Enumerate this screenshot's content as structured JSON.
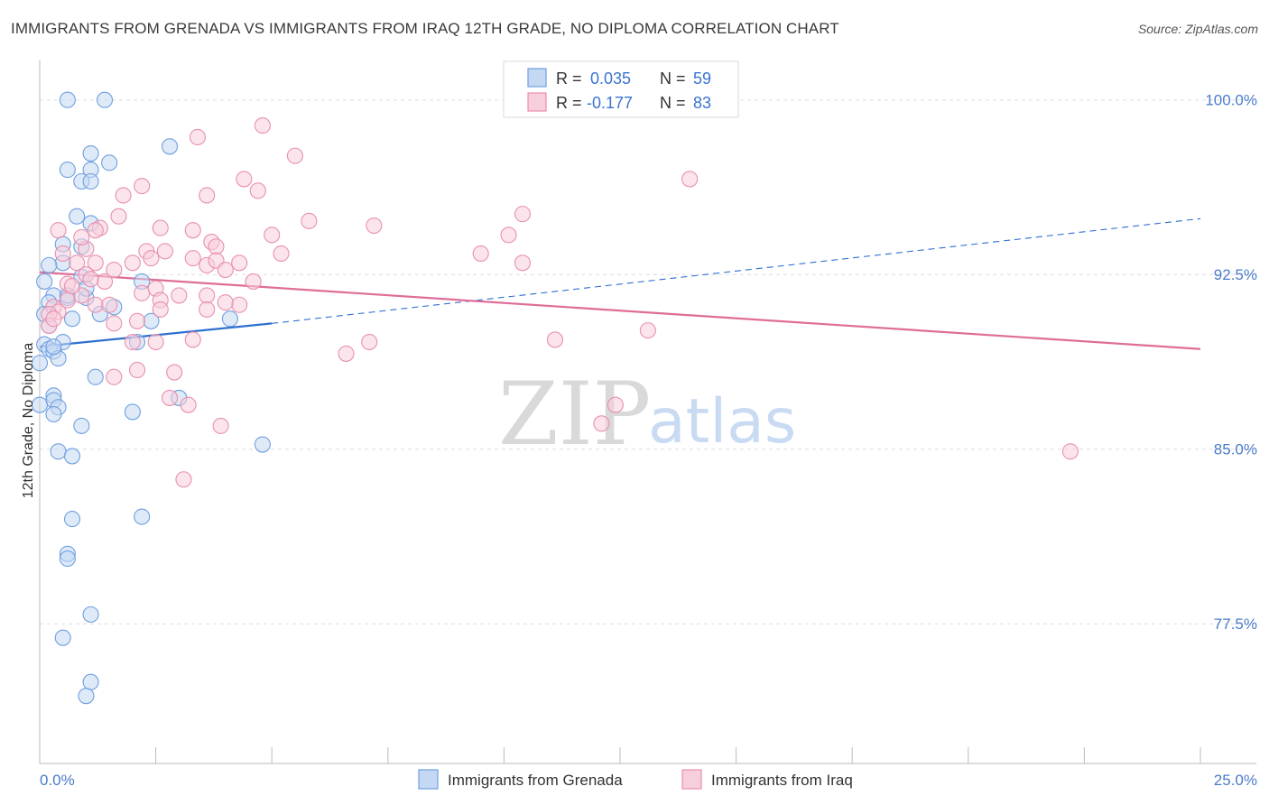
{
  "header": {
    "title": "IMMIGRANTS FROM GRENADA VS IMMIGRANTS FROM IRAQ 12TH GRADE, NO DIPLOMA CORRELATION CHART",
    "source": "Source: ZipAtlas.com"
  },
  "watermark": {
    "zip": "ZIP",
    "atlas": "atlas"
  },
  "legend": {
    "rows": [
      {
        "r_label": "R =",
        "r_value": "0.035",
        "n_label": "N =",
        "n_value": "59"
      },
      {
        "r_label": "R =",
        "r_value": "-0.177",
        "n_label": "N =",
        "n_value": "83"
      }
    ]
  },
  "chart_data": {
    "type": "scatter",
    "title": "IMMIGRANTS FROM GRENADA VS IMMIGRANTS FROM IRAQ 12TH GRADE, NO DIPLOMA CORRELATION CHART",
    "xlabel": "",
    "ylabel": "12th Grade, No Diploma",
    "xlim": [
      0,
      25
    ],
    "ylim": [
      71.5,
      101.5
    ],
    "x_tick_labels": [
      "0.0%",
      "25.0%"
    ],
    "x_ticks": [
      0,
      25
    ],
    "y_ticks": [
      77.5,
      85.0,
      92.5,
      100.0
    ],
    "y_tick_labels": [
      "77.5%",
      "85.0%",
      "92.5%",
      "100.0%"
    ],
    "grid": true,
    "legend_position": "top-center",
    "series": [
      {
        "name": "Immigrants from Grenada",
        "color": "#6f9fe0",
        "fill": "#c5d8f3",
        "R": 0.035,
        "N": 59,
        "trend_solid": [
          [
            0.0,
            89.4
          ],
          [
            5.0,
            90.4
          ]
        ],
        "trend_dashed": [
          [
            5.0,
            90.4
          ],
          [
            25.0,
            94.9
          ]
        ],
        "points": [
          [
            0.6,
            100.0
          ],
          [
            1.4,
            100.0
          ],
          [
            2.8,
            98.0
          ],
          [
            1.1,
            97.7
          ],
          [
            1.5,
            97.3
          ],
          [
            0.6,
            97.0
          ],
          [
            1.1,
            97.0
          ],
          [
            0.9,
            96.5
          ],
          [
            1.1,
            96.5
          ],
          [
            0.8,
            95.0
          ],
          [
            1.1,
            94.7
          ],
          [
            0.5,
            93.8
          ],
          [
            0.9,
            93.7
          ],
          [
            0.5,
            93.0
          ],
          [
            0.2,
            92.9
          ],
          [
            0.1,
            92.2
          ],
          [
            0.9,
            92.4
          ],
          [
            0.3,
            91.6
          ],
          [
            0.6,
            91.5
          ],
          [
            1.0,
            91.5
          ],
          [
            0.2,
            91.3
          ],
          [
            2.2,
            92.2
          ],
          [
            1.6,
            91.1
          ],
          [
            1.3,
            90.8
          ],
          [
            0.1,
            90.8
          ],
          [
            0.7,
            90.6
          ],
          [
            2.4,
            90.5
          ],
          [
            4.1,
            90.6
          ],
          [
            0.1,
            89.5
          ],
          [
            0.2,
            89.3
          ],
          [
            0.5,
            89.6
          ],
          [
            0.3,
            89.2
          ],
          [
            0.4,
            88.9
          ],
          [
            2.1,
            89.6
          ],
          [
            0.0,
            88.7
          ],
          [
            1.2,
            88.1
          ],
          [
            0.3,
            87.3
          ],
          [
            0.3,
            87.1
          ],
          [
            0.4,
            86.8
          ],
          [
            0.0,
            86.9
          ],
          [
            2.0,
            86.6
          ],
          [
            0.3,
            86.5
          ],
          [
            3.0,
            87.2
          ],
          [
            0.9,
            86.0
          ],
          [
            0.4,
            84.9
          ],
          [
            0.7,
            84.7
          ],
          [
            4.8,
            85.2
          ],
          [
            0.7,
            82.0
          ],
          [
            2.2,
            82.1
          ],
          [
            0.6,
            80.5
          ],
          [
            0.6,
            80.3
          ],
          [
            1.1,
            77.9
          ],
          [
            0.5,
            76.9
          ],
          [
            1.1,
            75.0
          ],
          [
            1.0,
            74.4
          ],
          [
            0.2,
            90.3
          ],
          [
            0.6,
            91.6
          ],
          [
            1.0,
            91.9
          ],
          [
            0.3,
            89.4
          ]
        ]
      },
      {
        "name": "Immigrants from Iraq",
        "color": "#e890ae",
        "fill": "#f7cedc",
        "R": -0.177,
        "N": 83,
        "trend_solid": [
          [
            0.0,
            92.6
          ],
          [
            25.0,
            89.3
          ]
        ],
        "points": [
          [
            0.3,
            91.1
          ],
          [
            0.4,
            90.9
          ],
          [
            0.2,
            90.8
          ],
          [
            0.6,
            92.1
          ],
          [
            0.6,
            91.4
          ],
          [
            1.2,
            91.2
          ],
          [
            0.5,
            93.4
          ],
          [
            1.0,
            93.6
          ],
          [
            1.3,
            94.5
          ],
          [
            0.4,
            94.4
          ],
          [
            0.9,
            94.1
          ],
          [
            0.8,
            93.0
          ],
          [
            1.2,
            93.0
          ],
          [
            1.6,
            92.7
          ],
          [
            1.0,
            92.5
          ],
          [
            1.4,
            92.2
          ],
          [
            1.5,
            91.2
          ],
          [
            0.9,
            91.6
          ],
          [
            1.6,
            90.4
          ],
          [
            2.1,
            90.5
          ],
          [
            1.7,
            95.0
          ],
          [
            1.8,
            95.9
          ],
          [
            2.2,
            96.3
          ],
          [
            2.6,
            94.5
          ],
          [
            2.3,
            93.5
          ],
          [
            2.7,
            93.5
          ],
          [
            2.0,
            93.0
          ],
          [
            2.4,
            93.2
          ],
          [
            3.3,
            93.2
          ],
          [
            3.6,
            92.9
          ],
          [
            3.3,
            94.4
          ],
          [
            3.7,
            93.9
          ],
          [
            3.8,
            93.7
          ],
          [
            3.8,
            93.1
          ],
          [
            4.0,
            92.7
          ],
          [
            4.3,
            93.0
          ],
          [
            2.5,
            91.9
          ],
          [
            2.6,
            91.4
          ],
          [
            3.0,
            91.6
          ],
          [
            3.6,
            91.6
          ],
          [
            3.6,
            91.0
          ],
          [
            4.3,
            91.2
          ],
          [
            4.0,
            91.3
          ],
          [
            4.6,
            92.2
          ],
          [
            2.6,
            91.0
          ],
          [
            2.0,
            89.6
          ],
          [
            2.5,
            89.6
          ],
          [
            3.3,
            89.7
          ],
          [
            1.6,
            88.1
          ],
          [
            2.1,
            88.4
          ],
          [
            2.9,
            88.3
          ],
          [
            2.8,
            87.2
          ],
          [
            3.2,
            86.9
          ],
          [
            3.9,
            86.0
          ],
          [
            3.1,
            83.7
          ],
          [
            3.4,
            98.4
          ],
          [
            3.6,
            95.9
          ],
          [
            4.4,
            96.6
          ],
          [
            4.7,
            96.1
          ],
          [
            4.8,
            98.9
          ],
          [
            5.5,
            97.6
          ],
          [
            5.0,
            94.2
          ],
          [
            5.2,
            93.4
          ],
          [
            5.8,
            94.8
          ],
          [
            7.2,
            94.6
          ],
          [
            6.6,
            89.1
          ],
          [
            7.1,
            89.6
          ],
          [
            9.5,
            93.4
          ],
          [
            10.1,
            94.2
          ],
          [
            10.4,
            95.1
          ],
          [
            10.4,
            93.0
          ],
          [
            11.1,
            89.7
          ],
          [
            12.1,
            86.1
          ],
          [
            12.4,
            86.9
          ],
          [
            13.1,
            90.1
          ],
          [
            14.0,
            96.6
          ],
          [
            22.2,
            84.9
          ],
          [
            0.7,
            92.0
          ],
          [
            1.1,
            92.3
          ],
          [
            2.2,
            91.7
          ],
          [
            0.2,
            90.3
          ],
          [
            0.3,
            90.6
          ],
          [
            1.2,
            94.4
          ]
        ]
      }
    ]
  },
  "bottom_legend": {
    "items": [
      {
        "label": "Immigrants from Grenada"
      },
      {
        "label": "Immigrants from Iraq"
      }
    ]
  }
}
